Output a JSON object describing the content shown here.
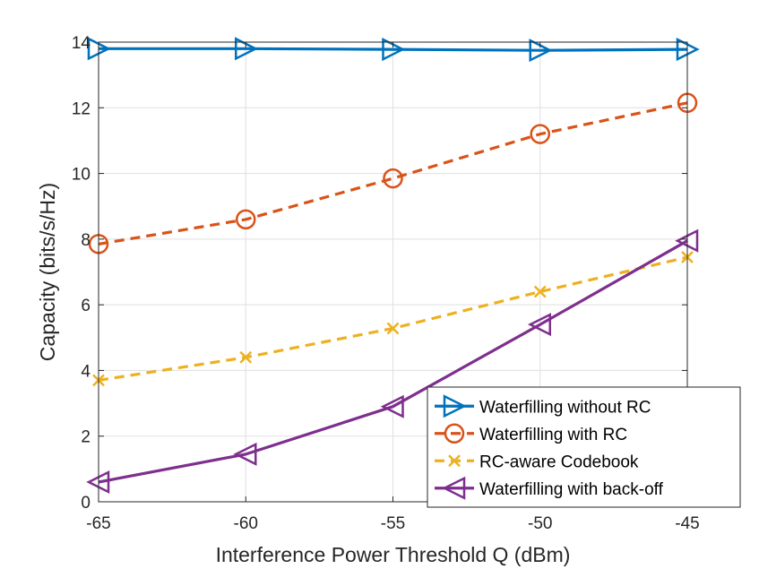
{
  "chart_data": {
    "type": "line",
    "title": "",
    "xlabel": "Interference Power Threshold Q (dBm)",
    "ylabel": "Capacity (bits/s/Hz)",
    "xlim": [
      -65,
      -45
    ],
    "ylim": [
      0,
      14
    ],
    "xticks": [
      -65,
      -60,
      -55,
      -50,
      -45
    ],
    "yticks": [
      0,
      2,
      4,
      6,
      8,
      10,
      12,
      14
    ],
    "x": [
      -65,
      -60,
      -55,
      -50,
      -45
    ],
    "grid": true,
    "legend_position": "bottom-right",
    "series": [
      {
        "name": "Waterfilling without RC",
        "values": [
          13.8,
          13.8,
          13.78,
          13.75,
          13.78
        ],
        "color": "#0072BD",
        "dash": "solid",
        "marker": "triangle-right"
      },
      {
        "name": "Waterfilling with RC",
        "values": [
          7.85,
          8.6,
          9.85,
          11.2,
          12.15
        ],
        "color": "#D95319",
        "dash": "dashed",
        "marker": "circle"
      },
      {
        "name": "RC-aware Codebook",
        "values": [
          3.7,
          4.4,
          5.28,
          6.4,
          7.45
        ],
        "color": "#EDB120",
        "dash": "dashed",
        "marker": "x"
      },
      {
        "name": "Waterfilling with back-off",
        "values": [
          0.6,
          1.45,
          2.9,
          5.4,
          7.95
        ],
        "color": "#7E2F8E",
        "dash": "solid",
        "marker": "triangle-left"
      }
    ]
  }
}
